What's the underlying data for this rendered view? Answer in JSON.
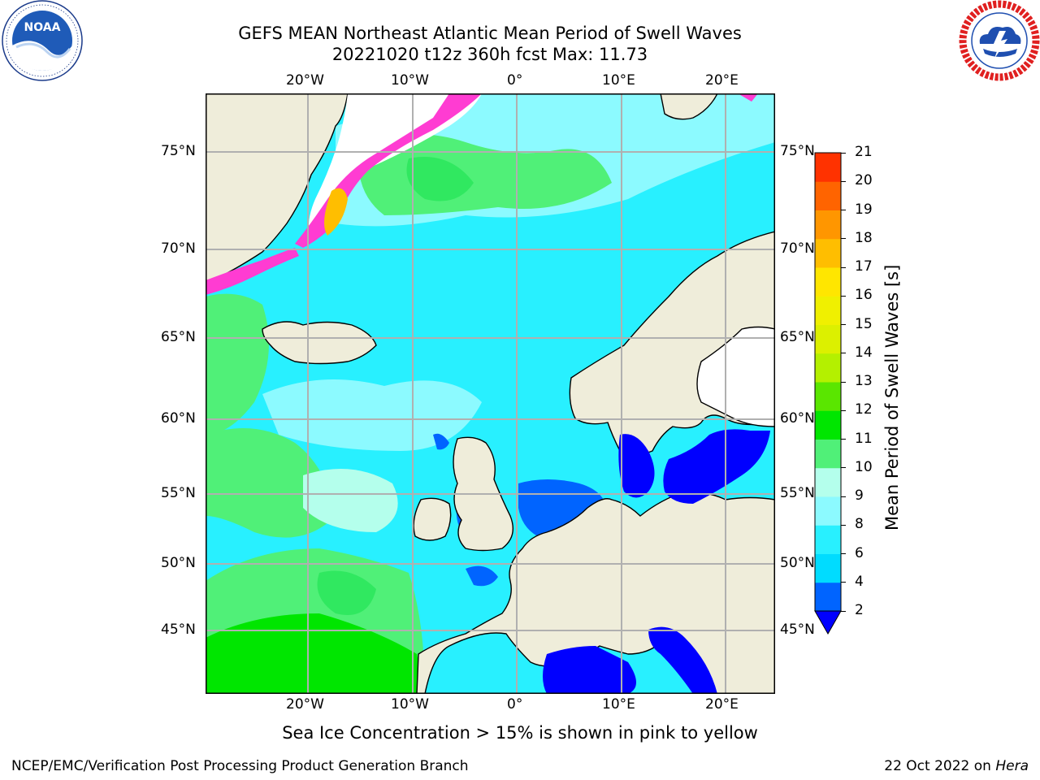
{
  "header": {
    "title_line1": "GEFS MEAN Northeast Atlantic Mean Period of Swell Waves",
    "title_line2": "20221020 t12z 360h fcst   Max: 11.73"
  },
  "logos": {
    "left": {
      "name": "noaa-logo",
      "text": "NOAA",
      "ring_text": "NATIONAL OCEANIC AND ATMOSPHERIC ADMINISTRATION · U.S. DEPARTMENT OF COMMERCE"
    },
    "right": {
      "name": "nws-logo",
      "ring_text": "NATIONAL WEATHER SERVICE"
    }
  },
  "map": {
    "lon_labels": [
      "20°W",
      "10°W",
      "0°",
      "10°E",
      "20°E"
    ],
    "lat_labels": [
      "75°N",
      "70°N",
      "65°N",
      "60°N",
      "55°N",
      "50°N",
      "45°N"
    ],
    "colors": {
      "land": "#efedda",
      "ocean_main": "#00f0ff",
      "grid": "#b0b0b0",
      "shallow": "#0064ff",
      "ice": "#ff3cd2"
    }
  },
  "colorbar": {
    "label": "Mean Period of Swell Waves [s]",
    "ticks": [
      "2",
      "4",
      "6",
      "8",
      "9",
      "10",
      "11",
      "12",
      "13",
      "14",
      "15",
      "16",
      "17",
      "18",
      "19",
      "20",
      "21"
    ],
    "colors": [
      "#0064ff",
      "#00dcff",
      "#28f0ff",
      "#8cfaff",
      "#b4ffec",
      "#50f078",
      "#00e600",
      "#5ae600",
      "#b4f000",
      "#dcf000",
      "#f0f000",
      "#ffe600",
      "#ffbe00",
      "#ff9600",
      "#ff6400",
      "#ff3200",
      "#ff0000"
    ],
    "under_color": "#0000ff"
  },
  "note": "Sea Ice Concentration > 15% is shown in pink to yellow",
  "footer": {
    "left": "NCEP/EMC/Verification Post Processing Product Generation Branch",
    "right_date": "22 Oct 2022 on ",
    "right_host": "Hera"
  }
}
